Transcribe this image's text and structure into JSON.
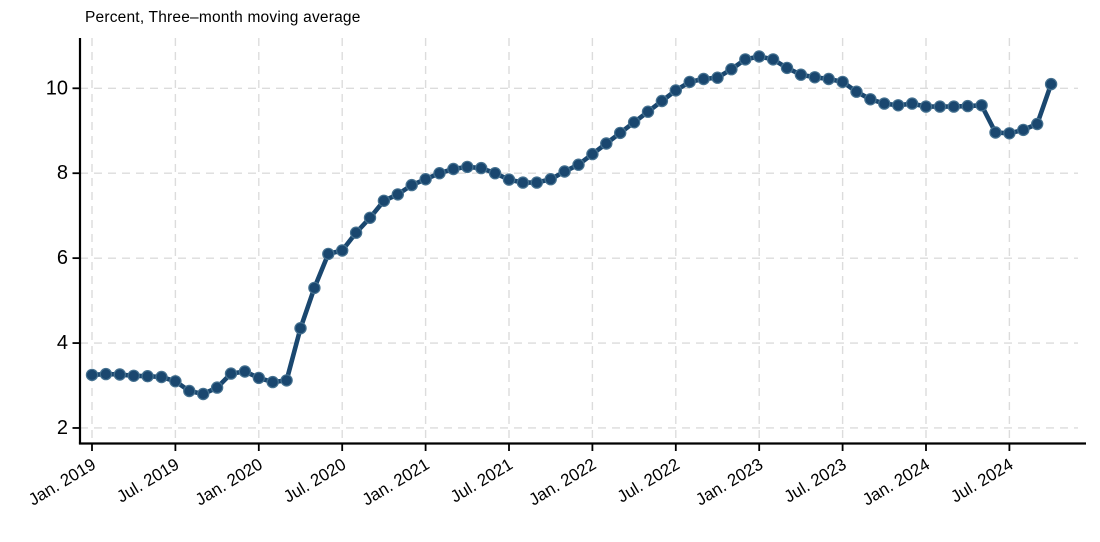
{
  "figure": {
    "kind": "statistical line chart, dark navy markers on white, dashed gray grid"
  },
  "chart_data": {
    "type": "line",
    "title": "Percent, Three–month moving average",
    "xlabel": "",
    "ylabel": "",
    "legend": "none",
    "grid": "dashed light-gray horizontal and vertical gridlines",
    "line_color": "#1a476f",
    "marker_edge_color": "#44708f",
    "marker": "filled circle",
    "y_ticks": [
      2,
      4,
      6,
      8,
      10
    ],
    "ylim": [
      1.6,
      11.2
    ],
    "x_tick_labels": [
      "Jan. 2019",
      "Jul. 2019",
      "Jan. 2020",
      "Jul. 2020",
      "Jan. 2021",
      "Jul. 2021",
      "Jan. 2022",
      "Jul. 2022",
      "Jan. 2023",
      "Jul. 2023",
      "Jan. 2024",
      "Jul. 2024"
    ],
    "x_tick_month_indices": [
      0,
      6,
      12,
      18,
      24,
      30,
      36,
      42,
      48,
      54,
      60,
      66
    ],
    "months": [
      "Jan 2019",
      "Feb 2019",
      "Mar 2019",
      "Apr 2019",
      "May 2019",
      "Jun 2019",
      "Jul 2019",
      "Aug 2019",
      "Sep 2019",
      "Oct 2019",
      "Nov 2019",
      "Dec 2019",
      "Jan 2020",
      "Feb 2020",
      "Mar 2020",
      "Apr 2020",
      "May 2020",
      "Jun 2020",
      "Jul 2020",
      "Aug 2020",
      "Sep 2020",
      "Oct 2020",
      "Nov 2020",
      "Dec 2020",
      "Jan 2021",
      "Feb 2021",
      "Mar 2021",
      "Apr 2021",
      "May 2021",
      "Jun 2021",
      "Jul 2021",
      "Aug 2021",
      "Sep 2021",
      "Oct 2021",
      "Nov 2021",
      "Dec 2021",
      "Jan 2022",
      "Feb 2022",
      "Mar 2022",
      "Apr 2022",
      "May 2022",
      "Jun 2022",
      "Jul 2022",
      "Aug 2022",
      "Sep 2022",
      "Oct 2022",
      "Nov 2022",
      "Dec 2022",
      "Jan 2023",
      "Feb 2023",
      "Mar 2023",
      "Apr 2023",
      "May 2023",
      "Jun 2023",
      "Jul 2023",
      "Aug 2023",
      "Sep 2023",
      "Oct 2023",
      "Nov 2023",
      "Dec 2023",
      "Jan 2024",
      "Feb 2024",
      "Mar 2024",
      "Apr 2024",
      "May 2024",
      "Jun 2024",
      "Jul 2024",
      "Aug 2024",
      "Sep 2024",
      "Oct 2024"
    ],
    "values": [
      3.25,
      3.27,
      3.26,
      3.23,
      3.22,
      3.2,
      3.1,
      2.87,
      2.8,
      2.95,
      3.28,
      3.33,
      3.18,
      3.08,
      3.12,
      4.35,
      5.3,
      6.1,
      6.18,
      6.6,
      6.95,
      7.35,
      7.5,
      7.72,
      7.86,
      8.0,
      8.1,
      8.15,
      8.12,
      8.0,
      7.85,
      7.78,
      7.78,
      7.86,
      8.04,
      8.2,
      8.45,
      8.7,
      8.95,
      9.2,
      9.45,
      9.7,
      9.95,
      10.15,
      10.22,
      10.25,
      10.45,
      10.68,
      10.75,
      10.68,
      10.48,
      10.32,
      10.26,
      10.22,
      10.15,
      9.92,
      9.74,
      9.64,
      9.6,
      9.64,
      9.57,
      9.57,
      9.57,
      9.58,
      9.6,
      8.96,
      8.94,
      9.02,
      9.16,
      10.1
    ]
  }
}
